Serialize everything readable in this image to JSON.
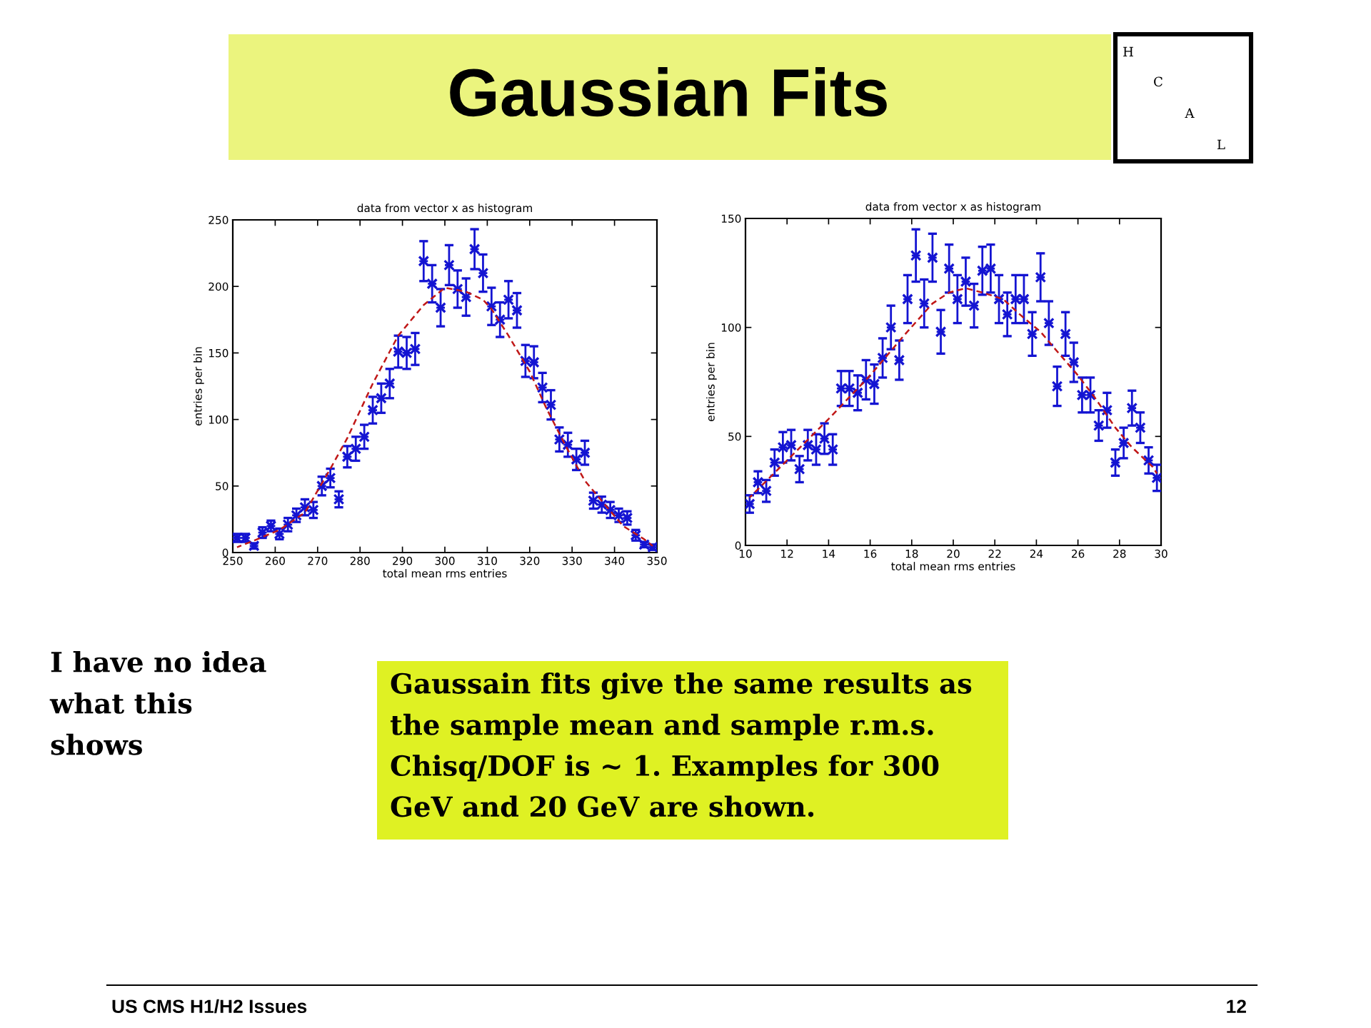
{
  "chart_data": [
    {
      "type": "other",
      "title": "Gaussian Fits",
      "annotations": [
        "H",
        "C",
        "A",
        "L",
        "I have no idea\nwhat this\nshows",
        "Gaussain fits give the same results as\nthe sample mean and sample r.m.s.\nChisq/DOF is ~ 1. Examples for 300\nGeV and 20 GeV are shown.",
        "US CMS H1/H2 Issues",
        "12"
      ]
    },
    {
      "type": "scatter",
      "title": "data from vector x as histogram",
      "xlabel": "total mean rms entries",
      "ylabel": "entries per bin",
      "xlim": [
        250,
        350
      ],
      "xticks": [
        250,
        260,
        270,
        280,
        290,
        300,
        310,
        320,
        330,
        340,
        350
      ],
      "ylim": [
        0,
        250
      ],
      "yticks": [
        0,
        50,
        100,
        150,
        200,
        250
      ],
      "series": [
        {
          "type": "scatter",
          "color": "#1414d2",
          "marker": "cross",
          "x": [
            251,
            253,
            255,
            257,
            259,
            261,
            263,
            265,
            267,
            269,
            271,
            273,
            275,
            277,
            279,
            281,
            283,
            285,
            287,
            289,
            291,
            293,
            295,
            297,
            299,
            301,
            303,
            305,
            307,
            309,
            311,
            313,
            315,
            317,
            319,
            321,
            323,
            325,
            327,
            329,
            331,
            333,
            335,
            337,
            339,
            341,
            343,
            345,
            347,
            349
          ],
          "values": [
            11,
            11,
            5,
            15,
            20,
            14,
            21,
            28,
            34,
            32,
            50,
            56,
            40,
            72,
            78,
            87,
            107,
            116,
            127,
            151,
            150,
            153,
            219,
            202,
            184,
            216,
            198,
            192,
            228,
            210,
            185,
            175,
            190,
            182,
            144,
            143,
            124,
            111,
            85,
            81,
            70,
            75,
            39,
            36,
            32,
            28,
            26,
            13,
            6,
            4
          ],
          "errors": [
            3,
            3,
            2,
            4,
            4,
            4,
            5,
            5,
            6,
            6,
            7,
            7,
            6,
            8,
            9,
            9,
            10,
            11,
            11,
            12,
            12,
            12,
            15,
            14,
            14,
            15,
            14,
            14,
            15,
            14,
            14,
            13,
            14,
            13,
            12,
            12,
            11,
            11,
            9,
            9,
            8,
            9,
            6,
            6,
            6,
            5,
            5,
            4,
            2,
            2
          ],
          "xerrors": [
            1,
            1,
            1,
            1,
            1,
            1,
            1,
            1,
            1,
            1,
            1,
            1,
            1,
            1,
            1,
            1,
            1,
            1,
            1,
            1,
            1,
            1,
            1,
            1,
            1,
            1,
            1,
            1,
            1,
            1,
            1,
            1,
            1,
            1,
            1,
            1,
            1,
            1,
            1,
            1,
            1,
            1,
            1,
            1,
            1,
            1,
            1,
            1,
            1,
            1
          ]
        },
        {
          "type": "line",
          "color": "#c01818",
          "line_style": "dashed",
          "x": [
            251,
            255,
            261,
            267,
            273,
            277,
            283,
            289,
            295,
            300,
            305,
            309,
            311,
            315,
            320,
            324,
            329,
            333,
            338,
            342,
            347,
            349
          ],
          "values": [
            4,
            9,
            17,
            30,
            63,
            86,
            127,
            163,
            186,
            199,
            196,
            190,
            183,
            163,
            136,
            108,
            77,
            54,
            35,
            20,
            10,
            5
          ]
        }
      ]
    },
    {
      "type": "scatter",
      "title": "data from vector x as histogram",
      "xlabel": "total mean rms entries",
      "ylabel": "entries per bin",
      "xlim": [
        10,
        30
      ],
      "xticks": [
        10,
        12,
        14,
        16,
        18,
        20,
        22,
        24,
        26,
        28,
        30
      ],
      "ylim": [
        0,
        150
      ],
      "yticks": [
        0,
        50,
        100,
        150
      ],
      "series": [
        {
          "type": "scatter",
          "color": "#1414d2",
          "marker": "cross",
          "x": [
            10.2,
            10.6,
            11.0,
            11.4,
            11.8,
            12.2,
            12.6,
            13.0,
            13.4,
            13.8,
            14.2,
            14.6,
            15.0,
            15.4,
            15.8,
            16.2,
            16.6,
            17.0,
            17.4,
            17.8,
            18.2,
            18.6,
            19.0,
            19.4,
            19.8,
            20.2,
            20.6,
            21.0,
            21.4,
            21.8,
            22.2,
            22.6,
            23.0,
            23.4,
            23.8,
            24.2,
            24.6,
            25.0,
            25.4,
            25.8,
            26.2,
            26.6,
            27.0,
            27.4,
            27.8,
            28.2,
            28.6,
            29.0,
            29.4,
            29.8
          ],
          "values": [
            19,
            29,
            25,
            38,
            45,
            46,
            35,
            46,
            44,
            49,
            44,
            72,
            72,
            70,
            76,
            74,
            86,
            100,
            85,
            113,
            133,
            111,
            132,
            98,
            127,
            113,
            121,
            110,
            126,
            127,
            113,
            106,
            113,
            113,
            97,
            123,
            102,
            73,
            97,
            84,
            69,
            69,
            55,
            62,
            38,
            47,
            63,
            54,
            39,
            31
          ],
          "errors": [
            4,
            5,
            5,
            6,
            7,
            7,
            6,
            7,
            7,
            7,
            7,
            8,
            8,
            8,
            9,
            9,
            9,
            10,
            9,
            11,
            12,
            11,
            11,
            10,
            11,
            11,
            11,
            10,
            11,
            11,
            11,
            10,
            11,
            11,
            10,
            11,
            10,
            9,
            10,
            9,
            8,
            8,
            7,
            8,
            6,
            7,
            8,
            7,
            6,
            6
          ],
          "xerrors": [
            0.2,
            0.2,
            0.2,
            0.2,
            0.2,
            0.2,
            0.2,
            0.2,
            0.2,
            0.2,
            0.2,
            0.2,
            0.2,
            0.2,
            0.2,
            0.2,
            0.2,
            0.2,
            0.2,
            0.2,
            0.2,
            0.2,
            0.2,
            0.2,
            0.2,
            0.2,
            0.2,
            0.2,
            0.2,
            0.2,
            0.2,
            0.2,
            0.2,
            0.2,
            0.2,
            0.2,
            0.2,
            0.2,
            0.2,
            0.2,
            0.2,
            0.2,
            0.2,
            0.2,
            0.2,
            0.2,
            0.2,
            0.2,
            0.2,
            0.2
          ]
        },
        {
          "type": "line",
          "color": "#c01818",
          "line_style": "dashed",
          "x": [
            10.2,
            12.0,
            14.0,
            16.0,
            17.6,
            19.0,
            19.8,
            20.6,
            21.4,
            22.4,
            23.2,
            24.2,
            25.0,
            26.0,
            26.8,
            27.8,
            28.6,
            29.6,
            29.8
          ],
          "values": [
            22,
            39,
            58,
            78,
            96,
            111,
            116,
            118,
            116,
            113,
            106,
            98,
            89,
            78,
            68,
            54,
            45,
            36,
            33
          ]
        }
      ]
    }
  ]
}
